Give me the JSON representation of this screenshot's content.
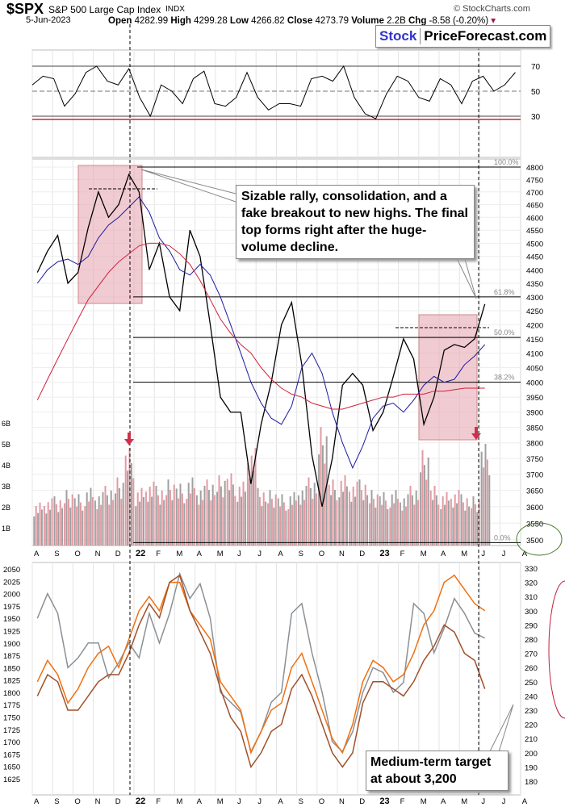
{
  "header": {
    "symbol": "$SPX",
    "name": "S&P 500 Large Cap Index",
    "exchange": "INDX",
    "date": "5-Jun-2023",
    "credit": "© StockCharts.com",
    "open_label": "Open",
    "open": "4282.99",
    "high_label": "High",
    "high": "4299.28",
    "low_label": "Low",
    "low": "4266.82",
    "close_label": "Close",
    "close": "4273.79",
    "volume_label": "Volume",
    "volume": "2.2B",
    "chg_label": "Chg",
    "chg": "-8.58 (-0.20%)"
  },
  "logo": {
    "part1": "Stock",
    "part2": "PriceForecast.com",
    "color1": "#3333cc"
  },
  "annotations": {
    "callout_top": "Sizable rally, consolidation, and a fake breakout to new highs. The final top forms right after the huge-volume decline.",
    "callout_bottom": "Medium-term target at about 3,200"
  },
  "colors": {
    "price": "#000000",
    "ma50": "#1a1aa0",
    "ma200": "#d0203a",
    "volume_up": "#e39aa3",
    "volume_down": "#a0a0a0",
    "rsi_line": "#000000",
    "rsi_band": "#d0203a",
    "highlight": "#e8a8b4",
    "series_gray": "#8a9095",
    "series_orange": "#f07010",
    "series_brown": "#a0502a"
  },
  "chart_data": [
    {
      "type": "line",
      "panel": "rsi",
      "yticks": [
        70,
        50,
        30
      ],
      "ylim": [
        20,
        80
      ],
      "values": [
        55,
        62,
        60,
        38,
        48,
        65,
        70,
        58,
        55,
        68,
        45,
        30,
        55,
        50,
        40,
        60,
        66,
        40,
        38,
        45,
        65,
        45,
        35,
        40,
        40,
        38,
        60,
        62,
        58,
        70,
        45,
        32,
        28,
        48,
        62,
        58,
        45,
        42,
        60,
        55,
        40,
        58,
        62,
        50,
        55,
        65
      ]
    },
    {
      "type": "line",
      "panel": "price",
      "scale": "log",
      "ylim": [
        3500,
        4800
      ],
      "yticks": [
        4800,
        4750,
        4700,
        4650,
        4600,
        4550,
        4500,
        4450,
        4400,
        4350,
        4300,
        4250,
        4200,
        4150,
        4100,
        4050,
        4000,
        3950,
        3900,
        3850,
        3800,
        3750,
        3700,
        3650,
        3600,
        3550,
        3500
      ],
      "xticks": [
        "A",
        "S",
        "O",
        "N",
        "D",
        "22",
        "F",
        "M",
        "A",
        "M",
        "J",
        "J",
        "A",
        "S",
        "O",
        "N",
        "D",
        "23",
        "F",
        "M",
        "A",
        "M",
        "J",
        "J",
        "A"
      ],
      "series": [
        {
          "key": "price",
          "values": [
            4390,
            4470,
            4530,
            4350,
            4390,
            4560,
            4700,
            4600,
            4650,
            4770,
            4700,
            4400,
            4500,
            4300,
            4250,
            4550,
            4450,
            4200,
            3950,
            3900,
            3900,
            3670,
            3860,
            4000,
            4200,
            4280,
            4060,
            3760,
            3600,
            3750,
            3990,
            4030,
            3990,
            3840,
            3900,
            4020,
            4150,
            4080,
            3860,
            3950,
            4110,
            4130,
            4120,
            4150,
            4274
          ]
        },
        {
          "key": "ma50",
          "values": [
            4350,
            4400,
            4430,
            4440,
            4420,
            4450,
            4520,
            4570,
            4600,
            4640,
            4680,
            4620,
            4520,
            4470,
            4400,
            4380,
            4420,
            4380,
            4300,
            4200,
            4100,
            4000,
            3930,
            3880,
            3860,
            3920,
            4050,
            4100,
            4030,
            3900,
            3800,
            3720,
            3790,
            3880,
            3920,
            3930,
            3900,
            3940,
            3990,
            4020,
            4000,
            4010,
            4060,
            4090,
            4130
          ]
        },
        {
          "key": "ma200",
          "values": [
            3940,
            4010,
            4080,
            4150,
            4220,
            4290,
            4340,
            4390,
            4430,
            4460,
            4490,
            4500,
            4500,
            4490,
            4460,
            4420,
            4360,
            4290,
            4220,
            4170,
            4130,
            4100,
            4050,
            4010,
            3980,
            3960,
            3950,
            3930,
            3920,
            3910,
            3910,
            3920,
            3930,
            3940,
            3950,
            3950,
            3960,
            3960,
            3960,
            3970,
            3970,
            3975,
            3980,
            3980,
            3980
          ]
        }
      ],
      "fibonacci": [
        {
          "label": "100.0%",
          "price": 4800
        },
        {
          "label": "61.8%",
          "price": 4300
        },
        {
          "label": "50.0%",
          "price": 4155
        },
        {
          "label": "38.2%",
          "price": 4000
        },
        {
          "label": "0.0%",
          "price": 3492
        }
      ],
      "volume": {
        "yticks": [
          "6B",
          "5B",
          "4B",
          "3B",
          "2B",
          "1B"
        ],
        "values": [
          2.2,
          2.4,
          2.5,
          2.8,
          2.6,
          2.9,
          2.7,
          3.0,
          3.4,
          4.8,
          2.9,
          3.2,
          3.0,
          3.3,
          3.1,
          3.4,
          3.0,
          3.3,
          3.5,
          3.6,
          3.2,
          4.8,
          2.9,
          2.8,
          2.6,
          2.7,
          3.0,
          3.4,
          5.8,
          3.3,
          3.5,
          3.2,
          3.3,
          2.8,
          2.7,
          2.8,
          2.6,
          3.0,
          4.7,
          3.0,
          2.7,
          2.8,
          2.6,
          2.5,
          5.0
        ]
      }
    },
    {
      "type": "line",
      "panel": "comparison",
      "yticks_left": [
        2050,
        2025,
        2000,
        1975,
        1950,
        1925,
        1900,
        1875,
        1850,
        1825,
        1800,
        1775,
        1750,
        1725,
        1700,
        1675,
        1650,
        1625
      ],
      "yticks_right": [
        330,
        320,
        310,
        300,
        290,
        280,
        270,
        260,
        250,
        240,
        230,
        220,
        210,
        200,
        190,
        180
      ],
      "series": [
        {
          "key": "series_gray",
          "axis": "left",
          "values": [
            1950,
            2000,
            1960,
            1850,
            1870,
            1900,
            1900,
            1830,
            1860,
            1900,
            1870,
            1960,
            1900,
            1960,
            2040,
            1990,
            2020,
            1950,
            1800,
            1780,
            1760,
            1680,
            1720,
            1780,
            1800,
            1960,
            1980,
            1880,
            1800,
            1700,
            1680,
            1720,
            1800,
            1850,
            1840,
            1800,
            1820,
            1980,
            1960,
            1880,
            1930,
            1990,
            1960,
            1920,
            1910
          ]
        },
        {
          "key": "series_orange",
          "axis": "right",
          "values": [
            250,
            265,
            255,
            235,
            245,
            260,
            270,
            275,
            260,
            280,
            300,
            310,
            300,
            320,
            320,
            300,
            290,
            280,
            250,
            240,
            230,
            200,
            215,
            230,
            235,
            260,
            270,
            250,
            230,
            210,
            200,
            220,
            250,
            265,
            260,
            250,
            255,
            270,
            290,
            300,
            320,
            325,
            315,
            305,
            300
          ]
        },
        {
          "key": "series_brown",
          "axis": "right",
          "values": [
            240,
            255,
            250,
            230,
            230,
            240,
            250,
            255,
            255,
            270,
            290,
            305,
            295,
            320,
            325,
            300,
            285,
            270,
            245,
            225,
            215,
            190,
            200,
            215,
            220,
            245,
            255,
            240,
            220,
            200,
            190,
            200,
            235,
            250,
            250,
            245,
            240,
            250,
            265,
            275,
            290,
            285,
            270,
            265,
            245
          ]
        }
      ]
    }
  ]
}
